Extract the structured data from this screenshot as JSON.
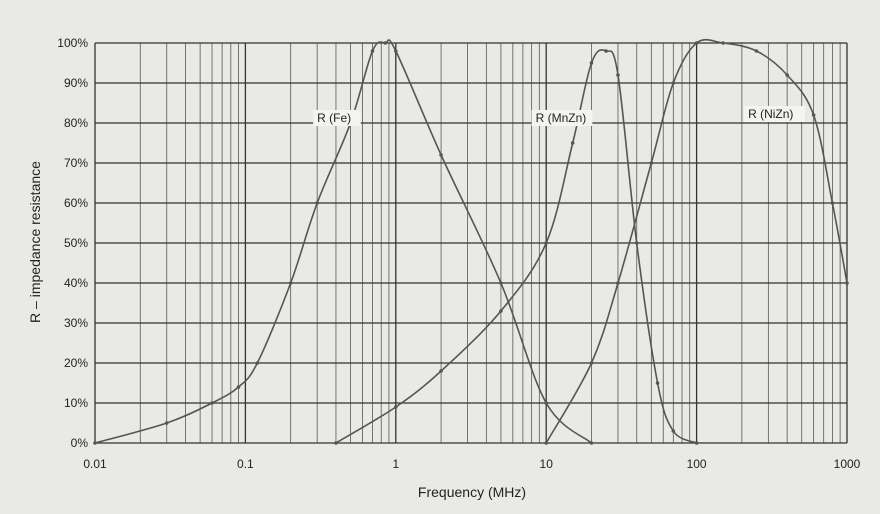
{
  "chart_data": {
    "type": "line",
    "x_scale": "log",
    "xlabel": "Frequency (MHz)",
    "ylabel": "R – impedance resistance",
    "xlim": [
      0.01,
      1000
    ],
    "ylim": [
      0,
      100
    ],
    "x_ticks": [
      "0.01",
      "0.1",
      "1",
      "10",
      "100",
      "1000"
    ],
    "y_ticks": [
      "0%",
      "10%",
      "20%",
      "30%",
      "40%",
      "50%",
      "60%",
      "70%",
      "80%",
      "90%",
      "100%"
    ],
    "grid": true,
    "series": [
      {
        "name": "R (Fe)",
        "points": [
          [
            0.01,
            0
          ],
          [
            0.03,
            5
          ],
          [
            0.06,
            10
          ],
          [
            0.09,
            14
          ],
          [
            0.12,
            20
          ],
          [
            0.2,
            40
          ],
          [
            0.3,
            60
          ],
          [
            0.5,
            80
          ],
          [
            0.7,
            98
          ],
          [
            0.85,
            100
          ],
          [
            1,
            98
          ],
          [
            2,
            72
          ],
          [
            5,
            40
          ],
          [
            10,
            10
          ],
          [
            20,
            0
          ]
        ]
      },
      {
        "name": "R (MnZn)",
        "points": [
          [
            0.4,
            0
          ],
          [
            1,
            9
          ],
          [
            2,
            18
          ],
          [
            5,
            33
          ],
          [
            10,
            50
          ],
          [
            15,
            75
          ],
          [
            20,
            95
          ],
          [
            25,
            98
          ],
          [
            30,
            92
          ],
          [
            40,
            50
          ],
          [
            55,
            15
          ],
          [
            70,
            3
          ],
          [
            100,
            0
          ]
        ]
      },
      {
        "name": "R (NiZn)",
        "points": [
          [
            10,
            0
          ],
          [
            20,
            20
          ],
          [
            30,
            40
          ],
          [
            50,
            70
          ],
          [
            70,
            90
          ],
          [
            100,
            100
          ],
          [
            150,
            100
          ],
          [
            250,
            98
          ],
          [
            400,
            92
          ],
          [
            600,
            82
          ],
          [
            800,
            60
          ],
          [
            1000,
            40
          ]
        ]
      }
    ]
  },
  "colors": {
    "background": "#e9e9e6",
    "grid": "#333333",
    "line": "#555555"
  }
}
